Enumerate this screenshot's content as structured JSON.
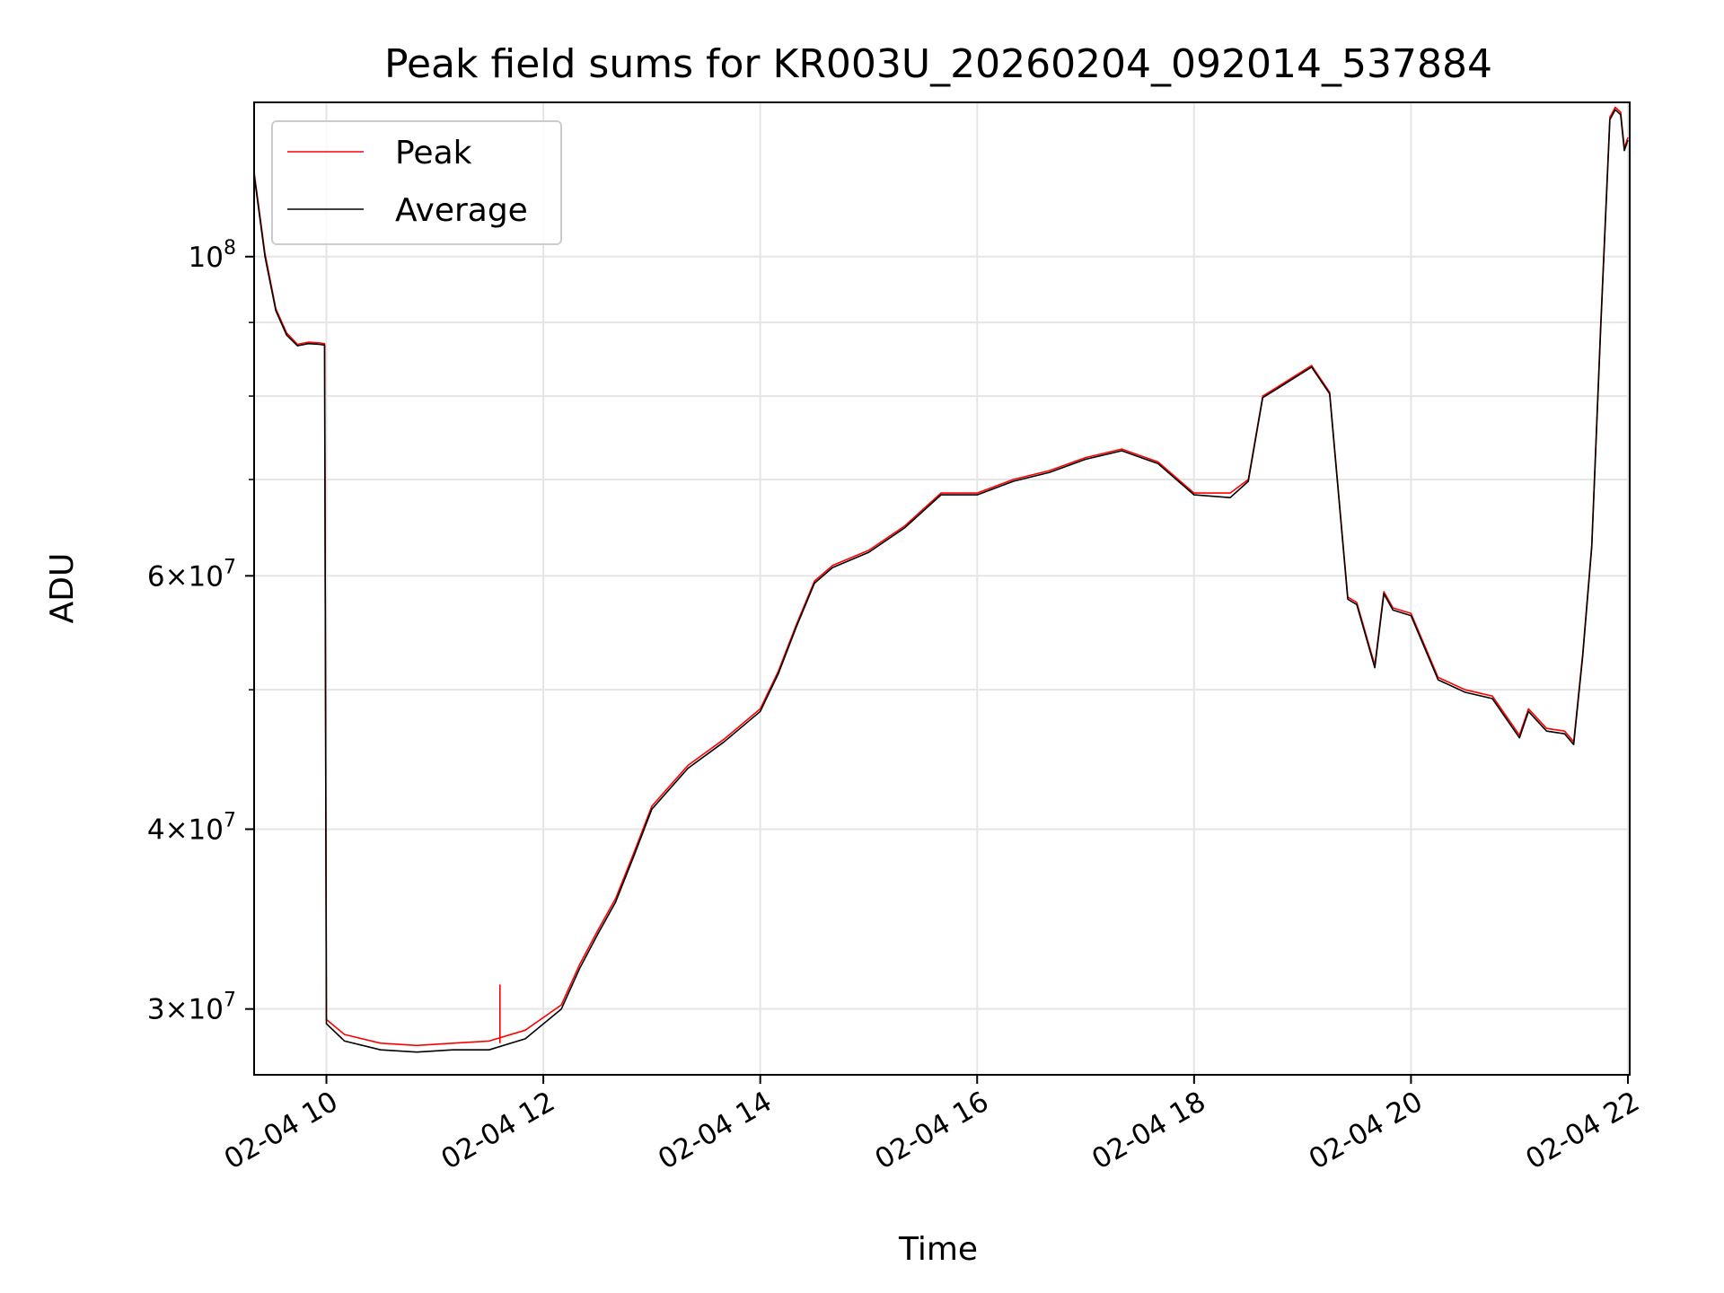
{
  "chart_data": {
    "type": "line",
    "title": "Peak field sums for KR003U_20260204_092014_537884",
    "xlabel": "Time",
    "ylabel": "ADU",
    "x_range": [
      "2026-02-04 09:20",
      "2026-02-04 22:01"
    ],
    "y_range": [
      27000000,
      128000000
    ],
    "y_scale": "log",
    "grid": true,
    "legend_position": "top-left",
    "x_ticks": [
      {
        "value": "2026-02-04 10:00",
        "label": "02-04 10"
      },
      {
        "value": "2026-02-04 12:00",
        "label": "02-04 12"
      },
      {
        "value": "2026-02-04 14:00",
        "label": "02-04 14"
      },
      {
        "value": "2026-02-04 16:00",
        "label": "02-04 16"
      },
      {
        "value": "2026-02-04 18:00",
        "label": "02-04 18"
      },
      {
        "value": "2026-02-04 20:00",
        "label": "02-04 20"
      },
      {
        "value": "2026-02-04 22:00",
        "label": "02-04 22"
      }
    ],
    "y_ticks_major": [
      {
        "value": 30000000,
        "mantissa": "3",
        "exp": "7"
      },
      {
        "value": 40000000,
        "mantissa": "4",
        "exp": "7"
      },
      {
        "value": 60000000,
        "mantissa": "6",
        "exp": "7"
      },
      {
        "value": 100000000,
        "mantissa": "",
        "exp": "8"
      }
    ],
    "y_ticks_minor": [
      50000000,
      70000000,
      80000000,
      90000000
    ],
    "series": [
      {
        "name": "Peak",
        "color": "#ff0000",
        "x": [
          "2026-02-04 09:20",
          "2026-02-04 09:26",
          "2026-02-04 09:32",
          "2026-02-04 09:38",
          "2026-02-04 09:44",
          "2026-02-04 09:50",
          "2026-02-04 09:56",
          "2026-02-04 09:59",
          "2026-02-04 10:00",
          "2026-02-04 10:10",
          "2026-02-04 10:30",
          "2026-02-04 10:50",
          "2026-02-04 11:10",
          "2026-02-04 11:30",
          "2026-02-04 11:50",
          "2026-02-04 12:10",
          "2026-02-04 12:20",
          "2026-02-04 12:30",
          "2026-02-04 12:40",
          "2026-02-04 12:50",
          "2026-02-04 13:00",
          "2026-02-04 13:20",
          "2026-02-04 13:40",
          "2026-02-04 14:00",
          "2026-02-04 14:10",
          "2026-02-04 14:20",
          "2026-02-04 14:30",
          "2026-02-04 14:40",
          "2026-02-04 15:00",
          "2026-02-04 15:20",
          "2026-02-04 15:40",
          "2026-02-04 16:00",
          "2026-02-04 16:20",
          "2026-02-04 16:40",
          "2026-02-04 17:00",
          "2026-02-04 17:20",
          "2026-02-04 17:40",
          "2026-02-04 18:00",
          "2026-02-04 18:20",
          "2026-02-04 18:30",
          "2026-02-04 18:38",
          "2026-02-04 18:45",
          "2026-02-04 18:55",
          "2026-02-04 19:05",
          "2026-02-04 19:15",
          "2026-02-04 19:25",
          "2026-02-04 19:30",
          "2026-02-04 19:40",
          "2026-02-04 19:45",
          "2026-02-04 19:50",
          "2026-02-04 20:00",
          "2026-02-04 20:15",
          "2026-02-04 20:30",
          "2026-02-04 20:45",
          "2026-02-04 21:00",
          "2026-02-04 21:05",
          "2026-02-04 21:15",
          "2026-02-04 21:25",
          "2026-02-04 21:30",
          "2026-02-04 21:35",
          "2026-02-04 21:40",
          "2026-02-04 21:45",
          "2026-02-04 21:50",
          "2026-02-04 21:53",
          "2026-02-04 21:56",
          "2026-02-04 21:58",
          "2026-02-04 22:00"
        ],
        "y": [
          114500000,
          100500000,
          92000000,
          88500000,
          86900000,
          87200000,
          87100000,
          87000000,
          29500000,
          28800000,
          28400000,
          28300000,
          28400000,
          28500000,
          29000000,
          30200000,
          32200000,
          34000000,
          35800000,
          38500000,
          41500000,
          44300000,
          46200000,
          48500000,
          51500000,
          55500000,
          59500000,
          61000000,
          62500000,
          65000000,
          68500000,
          68500000,
          70000000,
          71000000,
          72500000,
          73500000,
          72000000,
          68500000,
          68500000,
          70000000,
          80000000,
          81000000,
          82500000,
          84000000,
          80500000,
          58000000,
          57500000,
          52000000,
          58500000,
          57000000,
          56500000,
          51000000,
          50000000,
          49500000,
          46500000,
          48500000,
          47000000,
          46800000,
          46000000,
          53000000,
          63000000,
          90000000,
          125000000,
          127000000,
          126000000,
          119000000,
          121000000
        ]
      },
      {
        "name": "Average",
        "color": "#000000",
        "x": [
          "2026-02-04 09:20",
          "2026-02-04 09:26",
          "2026-02-04 09:32",
          "2026-02-04 09:38",
          "2026-02-04 09:44",
          "2026-02-04 09:50",
          "2026-02-04 09:56",
          "2026-02-04 09:59",
          "2026-02-04 10:00",
          "2026-02-04 10:10",
          "2026-02-04 10:30",
          "2026-02-04 10:50",
          "2026-02-04 11:10",
          "2026-02-04 11:30",
          "2026-02-04 11:50",
          "2026-02-04 12:10",
          "2026-02-04 12:20",
          "2026-02-04 12:30",
          "2026-02-04 12:40",
          "2026-02-04 12:50",
          "2026-02-04 13:00",
          "2026-02-04 13:20",
          "2026-02-04 13:40",
          "2026-02-04 14:00",
          "2026-02-04 14:10",
          "2026-02-04 14:20",
          "2026-02-04 14:30",
          "2026-02-04 14:40",
          "2026-02-04 15:00",
          "2026-02-04 15:20",
          "2026-02-04 15:40",
          "2026-02-04 16:00",
          "2026-02-04 16:20",
          "2026-02-04 16:40",
          "2026-02-04 17:00",
          "2026-02-04 17:20",
          "2026-02-04 17:40",
          "2026-02-04 18:00",
          "2026-02-04 18:20",
          "2026-02-04 18:30",
          "2026-02-04 18:38",
          "2026-02-04 18:45",
          "2026-02-04 18:55",
          "2026-02-04 19:05",
          "2026-02-04 19:15",
          "2026-02-04 19:25",
          "2026-02-04 19:30",
          "2026-02-04 19:40",
          "2026-02-04 19:45",
          "2026-02-04 19:50",
          "2026-02-04 20:00",
          "2026-02-04 20:15",
          "2026-02-04 20:30",
          "2026-02-04 20:45",
          "2026-02-04 21:00",
          "2026-02-04 21:05",
          "2026-02-04 21:15",
          "2026-02-04 21:25",
          "2026-02-04 21:30",
          "2026-02-04 21:35",
          "2026-02-04 21:40",
          "2026-02-04 21:45",
          "2026-02-04 21:50",
          "2026-02-04 21:53",
          "2026-02-04 21:56",
          "2026-02-04 21:58",
          "2026-02-04 22:00"
        ],
        "y": [
          114000000,
          100000000,
          91700000,
          88200000,
          86700000,
          87000000,
          86900000,
          86800000,
          29300000,
          28500000,
          28100000,
          28000000,
          28100000,
          28100000,
          28600000,
          30000000,
          32000000,
          33800000,
          35600000,
          38300000,
          41300000,
          44100000,
          46000000,
          48300000,
          51300000,
          55300000,
          59300000,
          60800000,
          62300000,
          64800000,
          68300000,
          68300000,
          69800000,
          70800000,
          72300000,
          73300000,
          71800000,
          68300000,
          68000000,
          69800000,
          79800000,
          80800000,
          82300000,
          83800000,
          80300000,
          57800000,
          57300000,
          51800000,
          58300000,
          56800000,
          56300000,
          50800000,
          49800000,
          49300000,
          46300000,
          48300000,
          46800000,
          46600000,
          45800000,
          52800000,
          62800000,
          89500000,
          124500000,
          126500000,
          125500000,
          118500000,
          120500000
        ]
      }
    ],
    "annotations": [
      {
        "series": "Peak",
        "x": "2026-02-04 11:36",
        "y": 31200000
      }
    ]
  }
}
